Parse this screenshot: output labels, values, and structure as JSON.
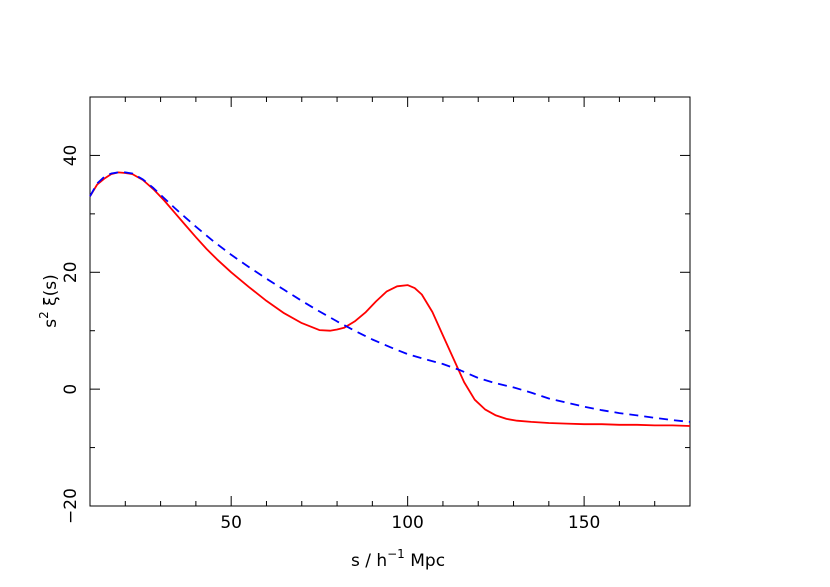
{
  "chart_data": {
    "type": "line",
    "xlabel": {
      "pre": "s / h",
      "sup": "−1",
      "post": " Mpc"
    },
    "ylabel": {
      "pre": "s",
      "sup": "2",
      "post": " ξ(s)"
    },
    "xlim": [
      10,
      180
    ],
    "ylim": [
      -20,
      50
    ],
    "x_ticks": [
      50,
      100,
      150
    ],
    "x_tick_labels": [
      "50",
      "100",
      "150"
    ],
    "y_ticks": [
      -20,
      0,
      20,
      40
    ],
    "y_tick_labels": [
      "−20",
      "0",
      "20",
      "40"
    ],
    "x_minor_step": 10,
    "y_minor_step": 10,
    "grid": false,
    "series": [
      {
        "style": "solid",
        "color": "#ff0000",
        "x": [
          10,
          12,
          14,
          16,
          18,
          20,
          22,
          25,
          28,
          31,
          34,
          37,
          40,
          43,
          46,
          50,
          55,
          60,
          65,
          70,
          75,
          78,
          80,
          82,
          85,
          88,
          91,
          94,
          97,
          100,
          102,
          104,
          107,
          110,
          113,
          116,
          119,
          122,
          125,
          128,
          131,
          135,
          140,
          145,
          150,
          155,
          160,
          165,
          170,
          175,
          180
        ],
        "y": [
          33,
          35,
          36,
          36.8,
          37.1,
          37,
          36.8,
          35.8,
          34.2,
          32.3,
          30.2,
          28.1,
          26,
          24,
          22.2,
          20,
          17.5,
          15.1,
          13,
          11.3,
          10.1,
          10,
          10.2,
          10.5,
          11.6,
          13.1,
          15,
          16.7,
          17.6,
          17.8,
          17.3,
          16.2,
          13.2,
          9.2,
          5.2,
          1.2,
          -1.8,
          -3.5,
          -4.5,
          -5.1,
          -5.4,
          -5.6,
          -5.8,
          -5.9,
          -6,
          -6,
          -6.1,
          -6.1,
          -6.2,
          -6.2,
          -6.3
        ]
      },
      {
        "style": "dashed",
        "color": "#0000ff",
        "x": [
          10,
          12,
          14,
          16,
          18,
          20,
          22,
          25,
          28,
          31,
          34,
          37,
          40,
          45,
          50,
          55,
          60,
          65,
          70,
          75,
          80,
          85,
          90,
          95,
          100,
          105,
          110,
          115,
          120,
          125,
          130,
          135,
          140,
          145,
          150,
          155,
          160,
          165,
          170,
          175,
          180
        ],
        "y": [
          33,
          35.2,
          36.3,
          36.9,
          37.1,
          37.1,
          36.9,
          35.9,
          34.4,
          32.7,
          31,
          29.4,
          27.8,
          25.3,
          23,
          20.9,
          18.9,
          17,
          15.1,
          13.3,
          11.6,
          10,
          8.5,
          7.2,
          6,
          5.1,
          4.3,
          3.2,
          1.9,
          1,
          0.3,
          -0.6,
          -1.6,
          -2.3,
          -3,
          -3.6,
          -4.1,
          -4.5,
          -4.9,
          -5.3,
          -5.6
        ]
      }
    ]
  }
}
